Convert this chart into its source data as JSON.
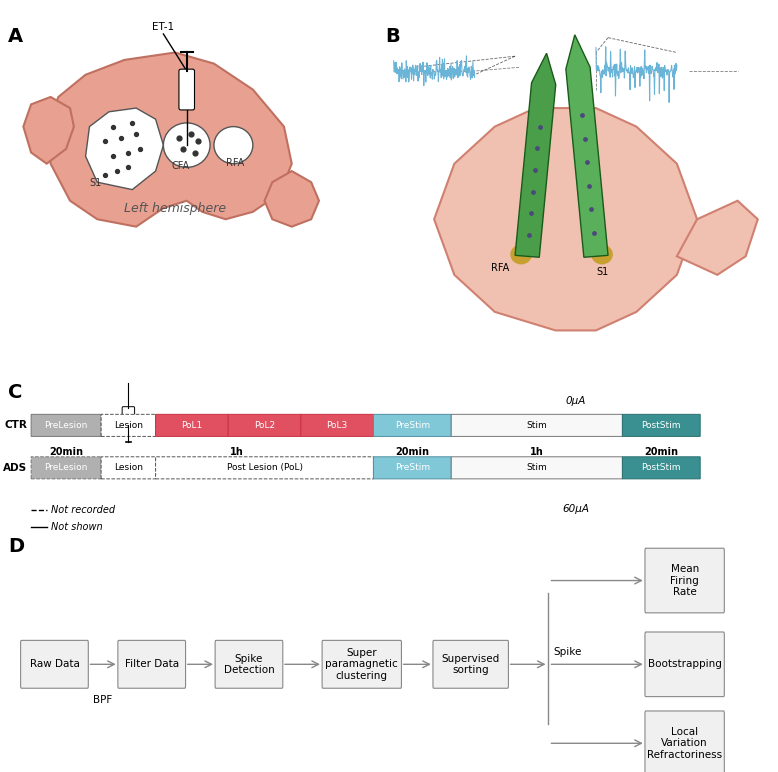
{
  "panel_labels": [
    "A",
    "B",
    "C",
    "D"
  ],
  "panel_label_fontsize": 14,
  "panel_label_fontweight": "bold",
  "background_color": "#ffffff",
  "brain_color": "#e8a090",
  "brain_edge_color": "#c07060",
  "cortex_fill": "#d4d4d4",
  "cortex_edge": "#555555",
  "electrode_green": "#4a9e4a",
  "electrode_dark_green": "#2d7a2d",
  "signal_blue": "#6ab4d8",
  "timeline_gray": "#b0b0b0",
  "timeline_prelesion": "#b0b0b0",
  "timeline_lesion_border": "#555555",
  "timeline_pol_red": "#e05060",
  "timeline_prestim_blue": "#80c8d8",
  "timeline_stim_white": "#f8f8f8",
  "timeline_poststim_teal": "#3a9090",
  "CTR_label": "CTR",
  "ADS_label": "ADS",
  "zero_ua": "0μA",
  "sixty_ua": "60μA",
  "flow_boxes": [
    "Raw Data",
    "Filter Data",
    "Spike\nDetection",
    "Super\nparamagnetic\nclustering",
    "Supervised\nsorting",
    "Bootstrapping",
    "Mean\nFiring\nRate",
    "Local\nVariation\nRefractoriness"
  ],
  "flow_box_color": "#f0f0f0",
  "flow_box_edge": "#888888",
  "flow_arrow_color": "#888888",
  "bpf_label": "BPF",
  "spike_label": "Spike"
}
